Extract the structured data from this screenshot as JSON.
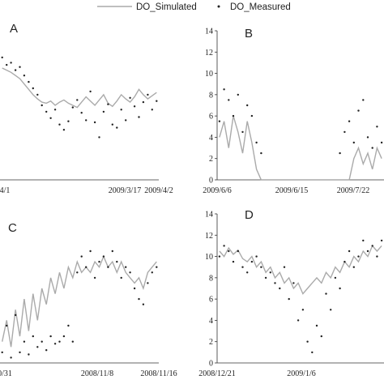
{
  "legend": {
    "simulated_label": "DO_Simulated",
    "measured_label": "DO_Measured",
    "simulated_color": "#aaaaaa",
    "measured_color": "#222222"
  },
  "chart_data": [
    {
      "type": "line",
      "panel": "A",
      "ylim": [
        0,
        14
      ],
      "y_ticks": [],
      "x_tick_labels": [
        "4/1",
        "2009/3/17",
        "2009/4/2"
      ],
      "series": [
        {
          "name": "DO_Simulated",
          "kind": "line",
          "y": [
            10.5,
            10.3,
            10.1,
            9.8,
            9.5,
            9.0,
            8.5,
            8.0,
            7.6,
            7.3,
            7.2,
            7.4,
            7.0,
            7.3,
            7.5,
            7.2,
            7.0,
            6.8,
            7.3,
            7.8,
            7.4,
            7.0,
            7.5,
            8.0,
            7.2,
            6.9,
            7.4,
            8.0,
            7.6,
            7.3,
            7.8,
            8.5,
            8.0,
            7.6,
            7.9,
            8.2
          ]
        },
        {
          "name": "DO_Measured",
          "kind": "points",
          "y": [
            11.5,
            10.8,
            11.0,
            10.3,
            10.6,
            9.8,
            9.2,
            8.6,
            8.0,
            7.0,
            6.4,
            5.8,
            6.6,
            5.2,
            4.7,
            5.5,
            6.8,
            7.5,
            6.3,
            5.6,
            8.3,
            5.4,
            4.0,
            6.4,
            7.1,
            5.2,
            4.9,
            6.6,
            5.6,
            7.7,
            6.9,
            5.9,
            7.3,
            8.0,
            6.6,
            7.4
          ]
        }
      ]
    },
    {
      "type": "line",
      "panel": "B",
      "ylim": [
        0,
        14
      ],
      "y_ticks": [
        0,
        2,
        4,
        6,
        8,
        10,
        12,
        14
      ],
      "x_tick_labels": [
        "2009/6/6",
        "2009/6/15",
        "2009/7/22"
      ],
      "series": [
        {
          "name": "DO_Simulated",
          "kind": "line",
          "y": [
            4.0,
            5.5,
            3.0,
            6.0,
            4.5,
            2.5,
            5.5,
            3.5,
            1.0,
            0,
            0,
            0,
            0,
            0,
            0,
            0,
            0,
            0,
            0,
            0,
            0,
            0,
            0,
            0,
            0,
            0,
            0,
            0,
            0,
            2.0,
            3.0,
            1.5,
            2.5,
            1.0,
            3.0,
            2.0
          ]
        },
        {
          "name": "DO_Measured",
          "kind": "points",
          "y": [
            5.5,
            8.5,
            7.5,
            6.0,
            8.0,
            4.5,
            7.0,
            6.0,
            3.5,
            2.5,
            null,
            null,
            null,
            null,
            null,
            null,
            null,
            null,
            null,
            null,
            null,
            null,
            null,
            null,
            null,
            null,
            2.5,
            4.5,
            5.5,
            3.5,
            6.5,
            7.5,
            4.0,
            3.0,
            5.0,
            3.5
          ]
        }
      ]
    },
    {
      "type": "line",
      "panel": "C",
      "ylim": [
        0,
        14
      ],
      "y_ticks": [],
      "x_tick_labels": [
        "0/31",
        "2008/11/8",
        "2008/11/16"
      ],
      "series": [
        {
          "name": "DO_Simulated",
          "kind": "line",
          "y": [
            2.0,
            4.0,
            1.5,
            5.0,
            2.5,
            6.0,
            3.0,
            6.5,
            4.0,
            7.0,
            5.5,
            8.0,
            6.5,
            8.5,
            7.0,
            9.0,
            8.0,
            9.5,
            8.5,
            9.0,
            8.5,
            9.5,
            9.0,
            10.0,
            9.0,
            9.5,
            8.5,
            9.5,
            8.5,
            8.0,
            7.5,
            8.0,
            7.0,
            8.5,
            9.0,
            9.5
          ]
        },
        {
          "name": "DO_Measured",
          "kind": "points",
          "y": [
            1.0,
            3.5,
            0.5,
            4.5,
            1.0,
            2.0,
            0.8,
            2.5,
            1.5,
            2.0,
            1.2,
            2.5,
            1.8,
            2.0,
            2.5,
            3.5,
            2.0,
            8.5,
            10.0,
            9.0,
            10.5,
            8.0,
            9.5,
            10.0,
            9.0,
            10.5,
            9.5,
            8.0,
            9.0,
            8.5,
            7.0,
            6.0,
            5.5,
            7.5,
            8.5,
            9.0
          ]
        }
      ]
    },
    {
      "type": "line",
      "panel": "D",
      "ylim": [
        0,
        14
      ],
      "y_ticks": [
        0,
        2,
        4,
        6,
        8,
        10,
        12,
        14
      ],
      "x_tick_labels": [
        "2008/12/21",
        "2009/1/6"
      ],
      "series": [
        {
          "name": "DO_Simulated",
          "kind": "line",
          "y": [
            10.5,
            10.0,
            10.8,
            10.2,
            10.6,
            9.8,
            9.5,
            10.0,
            9.0,
            9.5,
            8.5,
            9.0,
            8.0,
            8.5,
            7.5,
            8.0,
            7.0,
            7.5,
            6.5,
            7.0,
            7.5,
            8.0,
            7.5,
            8.5,
            8.0,
            9.0,
            8.5,
            9.5,
            9.0,
            10.0,
            9.5,
            10.5,
            10.0,
            11.0,
            10.5,
            11.0
          ]
        },
        {
          "name": "DO_Measured",
          "kind": "points",
          "y": [
            10.0,
            11.0,
            10.5,
            9.5,
            10.5,
            9.0,
            8.5,
            9.5,
            10.0,
            9.0,
            8.0,
            8.5,
            7.5,
            7.0,
            9.0,
            6.0,
            7.5,
            4.0,
            5.0,
            2.0,
            1.0,
            3.5,
            2.5,
            6.5,
            5.0,
            8.0,
            7.0,
            9.5,
            10.5,
            9.0,
            10.0,
            11.5,
            10.5,
            11.0,
            10.0,
            11.5
          ]
        }
      ]
    }
  ]
}
